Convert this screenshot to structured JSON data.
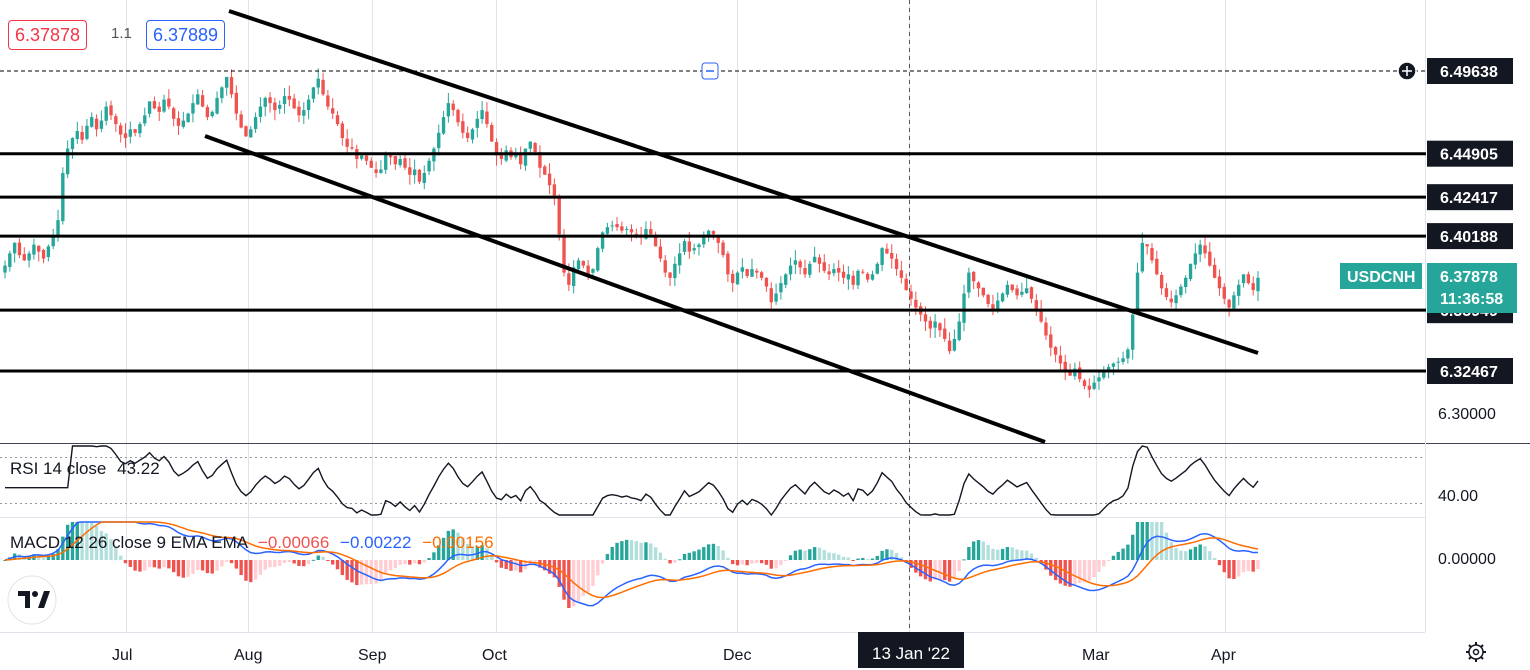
{
  "header": {
    "bid": "6.37878",
    "spread": "1.1",
    "ask": "6.37889"
  },
  "symbol_badge": {
    "symbol": "USDCNH",
    "price": "6.37878",
    "countdown": "11:36:58"
  },
  "rsi": {
    "label": "RSI 14 close",
    "value": "43.22",
    "axis_label": "40.00"
  },
  "macd": {
    "label": "MACD 12 26 close 9 EMA EMA",
    "hist_value": "−0.00066",
    "macd_value": "−0.00222",
    "signal_value": "−0.00156",
    "axis_label": "0.00000"
  },
  "crosshair": {
    "time_label": "13 Jan '22"
  },
  "colors": {
    "up": "#26a69a",
    "down": "#ef5350",
    "macd": "#2962ff",
    "signal": "#ff6d00",
    "rsi": "#131722",
    "badge": "#26a69a",
    "level": "#000000"
  },
  "chart_data": {
    "type": "candlestick",
    "symbol": "USDCNH",
    "timeframe": "1D",
    "x_ticks": [
      "Jul",
      "Aug",
      "Sep",
      "Oct",
      "Dec",
      "13 Jan '22",
      "Mar",
      "Apr"
    ],
    "price_axis_ticks": [
      "6.30000"
    ],
    "ylim": [
      6.28,
      6.51
    ],
    "horizontal_levels": [
      6.49638,
      6.44905,
      6.42417,
      6.40188,
      6.35949,
      6.32467
    ],
    "current_price": 6.37878,
    "channel_lines": [
      {
        "name": "upper",
        "points": [
          [
            "2021-06-03",
            6.513
          ],
          [
            "2022-04-08",
            6.351
          ]
        ]
      },
      {
        "name": "lower",
        "points": [
          [
            "2021-07-21",
            6.455
          ],
          [
            "2022-02-07",
            6.278
          ]
        ]
      }
    ],
    "closes": [
      6.385,
      6.392,
      6.398,
      6.391,
      6.388,
      6.392,
      6.397,
      6.393,
      6.389,
      6.396,
      6.402,
      6.411,
      6.438,
      6.452,
      6.458,
      6.462,
      6.457,
      6.465,
      6.47,
      6.463,
      6.468,
      6.476,
      6.471,
      6.466,
      6.46,
      6.458,
      6.463,
      6.461,
      6.466,
      6.471,
      6.479,
      6.475,
      6.473,
      6.48,
      6.476,
      6.469,
      6.465,
      6.468,
      6.472,
      6.478,
      6.483,
      6.476,
      6.47,
      6.473,
      6.481,
      6.487,
      6.493,
      6.483,
      6.472,
      6.464,
      6.459,
      6.463,
      6.47,
      6.476,
      6.481,
      6.478,
      6.474,
      6.477,
      6.482,
      6.48,
      6.475,
      6.471,
      6.474,
      6.48,
      6.487,
      6.492,
      6.483,
      6.476,
      6.472,
      6.466,
      6.458,
      6.453,
      6.452,
      6.446,
      6.448,
      6.445,
      6.441,
      6.438,
      6.44,
      6.449,
      6.447,
      6.443,
      6.446,
      6.441,
      6.437,
      6.44,
      6.433,
      6.438,
      6.445,
      6.452,
      6.461,
      6.47,
      6.478,
      6.474,
      6.467,
      6.461,
      6.458,
      6.463,
      6.469,
      6.474,
      6.466,
      6.456,
      6.448,
      6.446,
      6.451,
      6.447,
      6.449,
      6.443,
      6.452,
      6.456,
      6.45,
      6.441,
      6.437,
      6.431,
      6.425,
      6.403,
      6.381,
      6.374,
      6.384,
      6.388,
      6.385,
      6.38,
      6.383,
      6.395,
      6.404,
      6.407,
      6.408,
      6.407,
      6.405,
      6.406,
      6.404,
      6.403,
      6.401,
      6.406,
      6.403,
      6.396,
      6.389,
      6.381,
      6.378,
      6.386,
      6.392,
      6.399,
      6.393,
      6.395,
      6.397,
      6.401,
      6.405,
      6.403,
      6.398,
      6.391,
      6.38,
      6.375,
      6.381,
      6.384,
      6.379,
      6.383,
      6.381,
      6.378,
      6.373,
      6.364,
      6.369,
      6.375,
      6.38,
      6.385,
      6.388,
      6.384,
      6.38,
      6.386,
      6.39,
      6.386,
      6.382,
      6.38,
      6.383,
      6.381,
      6.378,
      6.38,
      6.374,
      6.382,
      6.381,
      6.377,
      6.38,
      6.386,
      6.395,
      6.392,
      6.389,
      6.383,
      6.378,
      6.371,
      6.366,
      6.361,
      6.357,
      6.353,
      6.349,
      6.353,
      6.348,
      6.343,
      6.336,
      6.343,
      6.353,
      6.369,
      6.381,
      6.376,
      6.372,
      6.368,
      6.363,
      6.36,
      6.365,
      6.369,
      6.374,
      6.371,
      6.368,
      6.37,
      6.372,
      6.366,
      6.36,
      6.353,
      6.345,
      6.338,
      6.334,
      6.329,
      6.325,
      6.322,
      6.326,
      6.32,
      6.316,
      6.314,
      6.318,
      6.321,
      6.324,
      6.327,
      6.329,
      6.33,
      6.332,
      6.337,
      6.357,
      6.381,
      6.398,
      6.396,
      6.388,
      6.38,
      6.372,
      6.367,
      6.364,
      6.368,
      6.373,
      6.378,
      6.386,
      6.392,
      6.397,
      6.392,
      6.385,
      6.378,
      6.372,
      6.366,
      6.361,
      6.368,
      6.374,
      6.38,
      6.375,
      6.371,
      6.378
    ]
  }
}
